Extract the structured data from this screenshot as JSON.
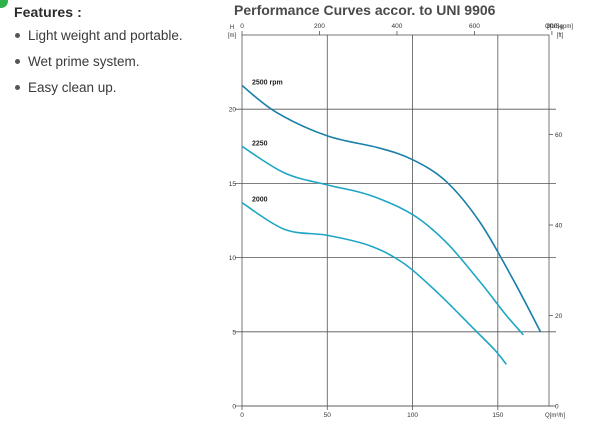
{
  "features": {
    "title": "Features :",
    "items": [
      "Light weight and portable.",
      "Wet prime system.",
      "Easy clean up."
    ]
  },
  "chart_data": {
    "type": "line",
    "title": "Performance Curves accor. to UNI 9906",
    "x_bottom": {
      "label": "Q[m³/h]",
      "range": [
        0,
        180
      ],
      "ticks": [
        0,
        50,
        100,
        150
      ]
    },
    "x_top": {
      "label": "Q[USgpm]",
      "range": [
        0,
        792.5
      ],
      "ticks": [
        0,
        200,
        400,
        600,
        800
      ]
    },
    "y_left": {
      "label_top": "H",
      "label_unit": "[m]",
      "range": [
        0,
        25
      ],
      "ticks": [
        0,
        5,
        10,
        15,
        20
      ]
    },
    "y_right": {
      "label_top": "H",
      "label_unit": "[ft]",
      "range": [
        0,
        82
      ],
      "ticks": [
        0,
        20,
        40,
        60
      ]
    },
    "grid": true,
    "series": [
      {
        "name": "2500 rpm",
        "color": "#1a7fa8",
        "points": [
          [
            0,
            21.6
          ],
          [
            20,
            19.8
          ],
          [
            50,
            18.2
          ],
          [
            80,
            17.4
          ],
          [
            100,
            16.6
          ],
          [
            120,
            15.1
          ],
          [
            140,
            12.3
          ],
          [
            160,
            8.3
          ],
          [
            175,
            5.0
          ]
        ]
      },
      {
        "name": "2250",
        "color": "#1fa6c4",
        "points": [
          [
            0,
            17.5
          ],
          [
            25,
            15.7
          ],
          [
            50,
            14.9
          ],
          [
            75,
            14.2
          ],
          [
            100,
            12.9
          ],
          [
            120,
            11.0
          ],
          [
            140,
            8.3
          ],
          [
            155,
            6.1
          ],
          [
            165,
            4.8
          ]
        ]
      },
      {
        "name": "2000",
        "color": "#1fa6c4",
        "points": [
          [
            0,
            13.7
          ],
          [
            25,
            11.9
          ],
          [
            50,
            11.5
          ],
          [
            75,
            10.8
          ],
          [
            95,
            9.6
          ],
          [
            115,
            7.6
          ],
          [
            135,
            5.3
          ],
          [
            148,
            3.8
          ],
          [
            155,
            2.8
          ]
        ]
      }
    ]
  }
}
